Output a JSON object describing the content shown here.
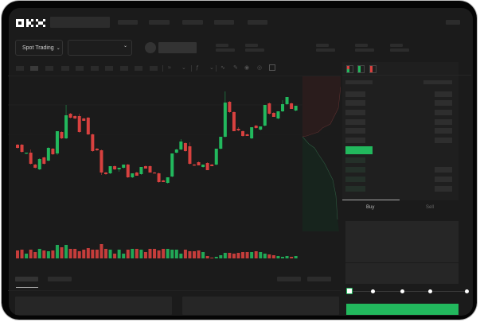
{
  "brand": {
    "logo_text": "OKX"
  },
  "header": {
    "nav_items_count": 5
  },
  "toolbar": {
    "market_selector": "Spot Trading",
    "pair_selector": ""
  },
  "chart_toolbar": {
    "icons": [
      "line-chart-icon",
      "pencil-icon",
      "camera-icon",
      "settings-icon",
      "fullscreen-icon"
    ]
  },
  "orderbook": {
    "view_icons": [
      "orderbook-both-icon",
      "orderbook-bids-icon",
      "orderbook-asks-icon"
    ]
  },
  "trade": {
    "tabs": [
      {
        "label": "Buy",
        "active": true
      },
      {
        "label": "Sell",
        "active": false
      }
    ],
    "slider_value_percent": 0,
    "slider_stops": [
      0,
      25,
      50,
      75,
      100
    ]
  },
  "colors": {
    "up": "#22b85d",
    "down": "#d8413f",
    "background": "#1b1b1b",
    "accent": "#22b85d"
  },
  "chart": {
    "type": "candlestick",
    "candles": [
      [
        118,
        119,
        113,
        114
      ],
      [
        118,
        119,
        108,
        109
      ],
      [
        107,
        108,
        106,
        108
      ],
      [
        108,
        112,
        93,
        94
      ],
      [
        93,
        94,
        88,
        89
      ],
      [
        87,
        101,
        86,
        100
      ],
      [
        102,
        103,
        93,
        94
      ],
      [
        98,
        115,
        97,
        114
      ],
      [
        113,
        114,
        105,
        106
      ],
      [
        107,
        135,
        105,
        135
      ],
      [
        134,
        135,
        125,
        126
      ],
      [
        126,
        168,
        125,
        155
      ],
      [
        157,
        158,
        151,
        152
      ],
      [
        154,
        155,
        150,
        151
      ],
      [
        154,
        157,
        133,
        134
      ],
      [
        151,
        152,
        148,
        148
      ],
      [
        152,
        153,
        130,
        131
      ],
      [
        131,
        132,
        109,
        110
      ],
      [
        113,
        114,
        110,
        111
      ],
      [
        111,
        112,
        80,
        83
      ],
      [
        83,
        84,
        80,
        81
      ],
      [
        82,
        91,
        81,
        91
      ],
      [
        91,
        92,
        86,
        87
      ],
      [
        87,
        89,
        84,
        89
      ],
      [
        89,
        93,
        88,
        93
      ],
      [
        93,
        94,
        76,
        77
      ],
      [
        77,
        82,
        76,
        82
      ],
      [
        83,
        84,
        79,
        79
      ],
      [
        81,
        90,
        80,
        90
      ],
      [
        91,
        92,
        88,
        88
      ],
      [
        91,
        92,
        83,
        83
      ],
      [
        83,
        84,
        82,
        82
      ],
      [
        82,
        83,
        70,
        71
      ],
      [
        73,
        74,
        71,
        71
      ],
      [
        70,
        77,
        69,
        77
      ],
      [
        78,
        107,
        77,
        107
      ],
      [
        108,
        113,
        107,
        112
      ],
      [
        112,
        125,
        111,
        122
      ],
      [
        120,
        121,
        109,
        110
      ],
      [
        116,
        121,
        93,
        94
      ],
      [
        93,
        94,
        91,
        92
      ],
      [
        96,
        97,
        92,
        92
      ],
      [
        90,
        93,
        89,
        93
      ],
      [
        95,
        96,
        86,
        86
      ],
      [
        93,
        94,
        91,
        91
      ],
      [
        93,
        113,
        92,
        113
      ],
      [
        113,
        128,
        112,
        128
      ],
      [
        128,
        185,
        127,
        171
      ],
      [
        172,
        173,
        158,
        159
      ],
      [
        159,
        160,
        135,
        135
      ],
      [
        138,
        140,
        135,
        136
      ],
      [
        135,
        136,
        128,
        129
      ],
      [
        131,
        132,
        129,
        129
      ],
      [
        126,
        140,
        125,
        140
      ],
      [
        142,
        143,
        138,
        139
      ],
      [
        137,
        141,
        136,
        141
      ],
      [
        142,
        168,
        141,
        168
      ],
      [
        170,
        171,
        156,
        157
      ],
      [
        158,
        159,
        153,
        153
      ],
      [
        151,
        160,
        150,
        160
      ],
      [
        160,
        174,
        159,
        169
      ],
      [
        169,
        178,
        168,
        178
      ],
      [
        170,
        171,
        163,
        163
      ],
      [
        161,
        167,
        160,
        167
      ]
    ],
    "volumes": [
      10,
      11,
      6,
      11,
      8,
      12,
      10,
      9,
      10,
      17,
      14,
      17,
      12,
      12,
      9,
      11,
      13,
      11,
      11,
      18,
      12,
      11,
      6,
      11,
      6,
      11,
      12,
      12,
      11,
      8,
      12,
      12,
      10,
      12,
      12,
      11,
      11,
      6,
      11,
      9,
      9,
      10,
      8,
      3,
      1,
      2,
      4,
      7,
      7,
      6,
      7,
      8,
      8,
      8,
      9,
      8,
      6,
      5,
      4,
      3,
      2,
      3,
      2,
      3
    ]
  }
}
